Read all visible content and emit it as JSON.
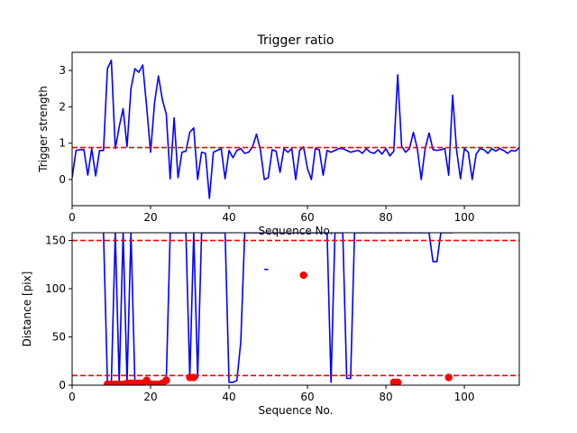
{
  "chart_data": [
    {
      "type": "line",
      "title": "Trigger ratio",
      "xlabel": "Sequence No.",
      "ylabel": "Trigger strength",
      "xlim": [
        0,
        114
      ],
      "ylim": [
        -0.72,
        3.5
      ],
      "xticks": [
        0,
        20,
        40,
        60,
        80,
        100
      ],
      "yticks": [
        0,
        1,
        2,
        3
      ],
      "grid": false,
      "series": [
        {
          "color": "#0000ff",
          "x": [
            0,
            1,
            2,
            3,
            4,
            5,
            6,
            7,
            8,
            9,
            10,
            11,
            12,
            13,
            14,
            15,
            16,
            17,
            18,
            19,
            20,
            21,
            22,
            23,
            24,
            25,
            26,
            27,
            28,
            29,
            30,
            31,
            32,
            33,
            34,
            35,
            36,
            37,
            38,
            39,
            40,
            41,
            42,
            43,
            44,
            45,
            46,
            47,
            48,
            49,
            50,
            51,
            52,
            53,
            54,
            55,
            56,
            57,
            58,
            59,
            60,
            61,
            62,
            63,
            64,
            65,
            66,
            67,
            68,
            69,
            70,
            71,
            72,
            73,
            74,
            75,
            76,
            77,
            78,
            79,
            80,
            81,
            82,
            83,
            84,
            85,
            86,
            87,
            88,
            89,
            90,
            91,
            92,
            93,
            94,
            95,
            96,
            97,
            98,
            99,
            100,
            101,
            102,
            103,
            104,
            105,
            106,
            107,
            108,
            109,
            110,
            111,
            112,
            113,
            114
          ],
          "y": [
            0.05,
            0.8,
            0.82,
            0.82,
            0.12,
            0.85,
            0.1,
            0.8,
            0.8,
            3.05,
            3.28,
            0.85,
            1.45,
            1.95,
            0.9,
            2.5,
            3.05,
            2.95,
            3.15,
            2.0,
            0.75,
            2.1,
            2.85,
            2.2,
            1.8,
            0.02,
            1.7,
            0.05,
            0.75,
            0.78,
            1.3,
            1.42,
            0.0,
            0.75,
            0.72,
            -0.52,
            0.75,
            0.8,
            0.85,
            0.02,
            0.8,
            0.6,
            0.8,
            0.85,
            0.72,
            0.75,
            0.9,
            1.25,
            0.82,
            0.0,
            0.05,
            0.82,
            0.78,
            0.2,
            0.85,
            0.75,
            0.85,
            0.0,
            0.8,
            0.9,
            0.3,
            0.0,
            0.85,
            0.82,
            0.12,
            0.8,
            0.75,
            0.8,
            0.85,
            0.85,
            0.8,
            0.75,
            0.78,
            0.8,
            0.72,
            0.85,
            0.75,
            0.72,
            0.82,
            0.7,
            0.85,
            0.65,
            0.78,
            2.88,
            0.92,
            0.75,
            0.85,
            1.3,
            0.85,
            0.0,
            0.85,
            1.28,
            0.82,
            0.8,
            0.82,
            0.85,
            0.12,
            2.32,
            0.82,
            0.02,
            0.85,
            0.75,
            0.0,
            0.7,
            0.85,
            0.82,
            0.72,
            0.85,
            0.78,
            0.85,
            0.8,
            0.72,
            0.8,
            0.78,
            0.88
          ]
        },
        {
          "color": "#ff0000",
          "style": "dashed",
          "x": [
            0,
            114
          ],
          "y": [
            0.88,
            0.88
          ]
        }
      ]
    },
    {
      "type": "line",
      "title": "",
      "xlabel": "Sequence No.",
      "ylabel": "Distance [pix]",
      "xlim": [
        0,
        114
      ],
      "ylim": [
        0,
        158
      ],
      "xticks": [
        0,
        20,
        40,
        60,
        80,
        100
      ],
      "yticks": [
        0,
        50,
        100,
        150
      ],
      "grid": false,
      "series": [
        {
          "color": "#0000ff",
          "x": [
            8,
            9,
            10,
            11,
            12,
            13,
            14,
            15,
            16,
            17,
            18,
            19,
            20,
            21,
            22,
            23,
            24,
            25,
            26,
            27,
            28,
            29,
            30,
            31,
            32,
            33,
            34,
            35,
            36,
            37,
            38,
            39,
            40,
            41,
            42,
            43,
            44,
            45,
            46,
            47,
            48,
            49,
            50,
            51,
            52,
            53,
            54,
            55,
            56,
            57,
            58,
            59,
            60,
            61,
            62,
            63,
            64,
            65,
            66,
            67,
            68,
            69,
            70,
            71,
            72,
            73,
            74,
            75,
            76,
            77,
            78,
            79,
            80,
            81,
            82,
            83,
            84,
            85,
            86,
            87,
            88,
            89,
            90,
            91,
            92,
            93,
            94,
            95,
            96,
            97
          ],
          "y": [
            158,
            3,
            3,
            158,
            3,
            158,
            3,
            158,
            3,
            3,
            3,
            3,
            3,
            3,
            3,
            3,
            4,
            158,
            158,
            158,
            158,
            158,
            8,
            158,
            8,
            158,
            158,
            158,
            158,
            158,
            158,
            158,
            3,
            3,
            5,
            45,
            158,
            158,
            158,
            158,
            158,
            158,
            158,
            158,
            158,
            158,
            158,
            158,
            158,
            158,
            158,
            158,
            158,
            158,
            158,
            158,
            158,
            158,
            3,
            158,
            158,
            158,
            7,
            7,
            158,
            158,
            158,
            158,
            158,
            158,
            158,
            158,
            158,
            158,
            158,
            158,
            158,
            158,
            158,
            158,
            158,
            158,
            158,
            158,
            128,
            128,
            158,
            158,
            158,
            158
          ]
        },
        {
          "color": "#0000ff",
          "x": [
            49,
            50
          ],
          "y": [
            120,
            120
          ]
        },
        {
          "color": "#ff0000",
          "style": "dashed",
          "x": [
            0,
            114
          ],
          "y": [
            150,
            150
          ]
        },
        {
          "color": "#ff0000",
          "style": "dashed",
          "x": [
            0,
            114
          ],
          "y": [
            10,
            10
          ]
        },
        {
          "color": "#ff0000",
          "style": "markers",
          "x": [
            9,
            10,
            11,
            12,
            13,
            14,
            15,
            16,
            17,
            18,
            19,
            20,
            21,
            22,
            23,
            24,
            30,
            31,
            59,
            82,
            83,
            96
          ],
          "y": [
            1,
            1,
            1,
            1,
            1,
            2,
            2,
            2,
            2,
            2,
            5,
            1,
            1,
            1,
            2,
            5,
            8,
            8,
            114,
            3,
            3,
            8
          ]
        }
      ]
    }
  ]
}
